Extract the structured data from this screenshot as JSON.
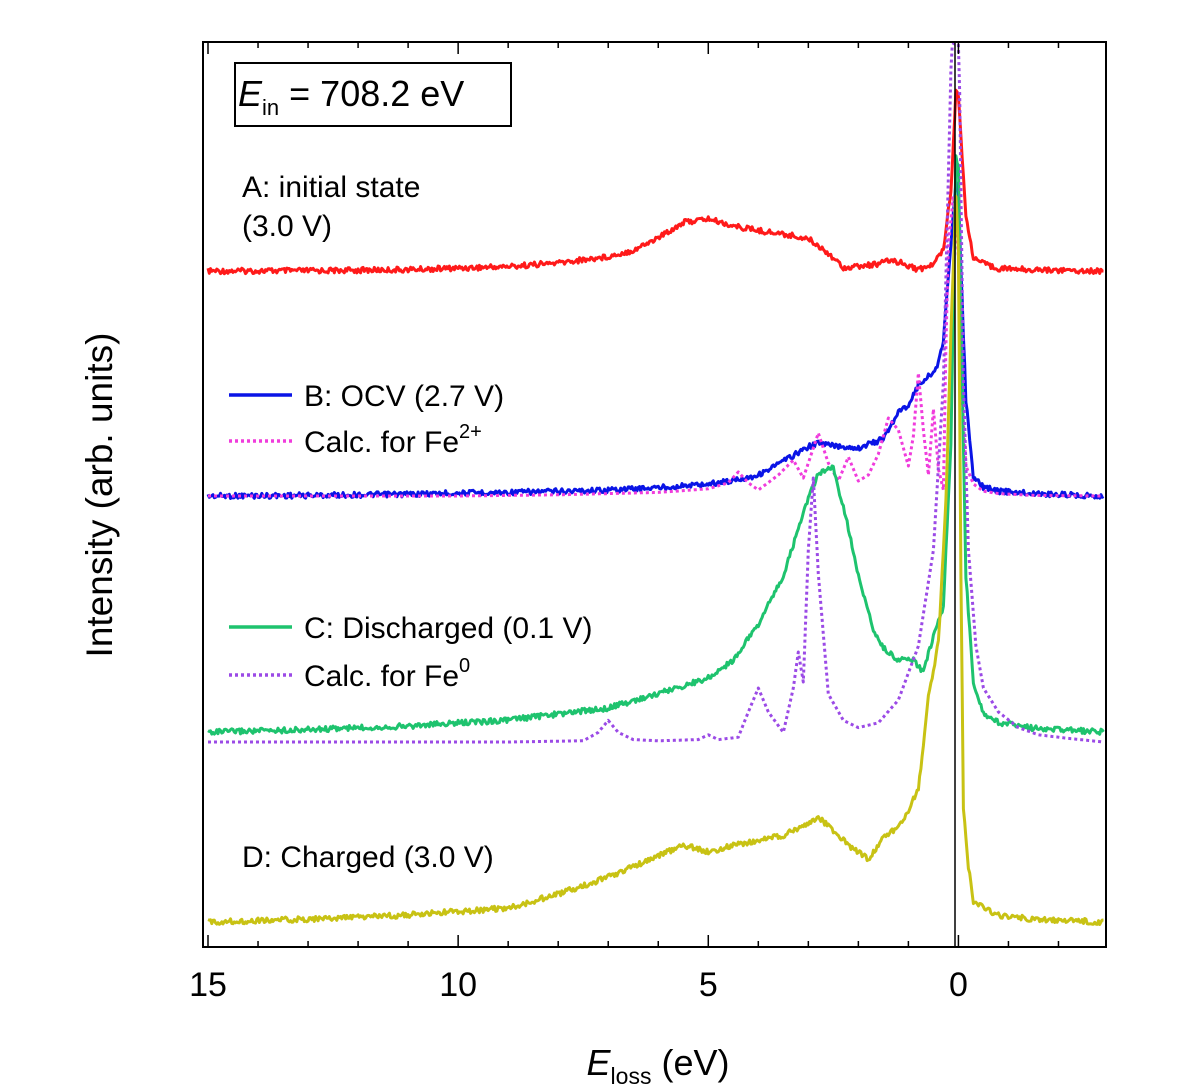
{
  "chart_data": {
    "type": "line",
    "xlabel": "E",
    "xlabel_sub": "loss",
    "xlabel_unit": " (eV)",
    "ylabel": "Intensity (arb. units)",
    "xlim": [
      15.1,
      -2.95
    ],
    "x_reversed": true,
    "xticks": [
      "15",
      "10",
      "5",
      "0"
    ],
    "grid": false,
    "energy_box": {
      "prefix": "E",
      "sub": "in",
      "rest": " = 708.2 eV"
    },
    "labels": {
      "a": {
        "line1": "A: initial state",
        "line2": "(3.0 V)"
      },
      "d": {
        "text": "D: Charged (3.0 V)"
      }
    },
    "legend": [
      {
        "text": "B: OCV (2.7 V)",
        "sup": "",
        "color": "#0a14e6",
        "dash": "solid"
      },
      {
        "text": "Calc. for Fe",
        "sup": "2+",
        "color": "#f03cdc",
        "dash": "dotted"
      },
      {
        "text": "C: Discharged (0.1 V)",
        "sup": "",
        "color": "#1ec36e",
        "dash": "solid"
      },
      {
        "text": "Calc. for Fe",
        "sup": "0",
        "color": "#9b4ae6",
        "dash": "dotted"
      }
    ],
    "series": [
      {
        "name": "A: initial state (3.0 V)",
        "color": "#ff1a1a",
        "dash": "solid",
        "x": [
          15,
          13,
          11,
          9,
          8,
          7,
          6.5,
          6,
          5.5,
          5,
          4.5,
          4,
          3.5,
          3,
          2.6,
          2.3,
          2,
          1.7,
          1.3,
          1.0,
          0.8,
          0.5,
          0.3,
          0.15,
          0.05,
          0,
          -0.05,
          -0.15,
          -0.3,
          -0.5,
          -0.8,
          -1.5,
          -2.9
        ],
        "y": [
          0,
          0.3,
          1.5,
          5,
          9,
          16,
          23,
          37,
          54,
          58,
          50,
          45,
          41,
          36,
          20,
          4,
          5,
          7,
          12,
          6,
          1.5,
          7,
          25,
          90,
          200,
          195,
          150,
          60,
          15,
          8,
          3,
          1.5,
          0
        ]
      },
      {
        "name": "B: OCV (2.7 V)",
        "color": "#0a14e6",
        "dash": "solid",
        "x": [
          15,
          14,
          13,
          12,
          11,
          10,
          9,
          8,
          7,
          6,
          5,
          4.5,
          4,
          3.5,
          3,
          2.8,
          2.5,
          2,
          1.5,
          1.2,
          1.0,
          0.8,
          0.6,
          0.45,
          0.3,
          0.15,
          0.05,
          0,
          -0.05,
          -0.15,
          -0.3,
          -0.5,
          -0.8,
          -1.5,
          -2.9
        ],
        "y": [
          0,
          0.5,
          1,
          2,
          3,
          5,
          6,
          8,
          10,
          14,
          20,
          26,
          35,
          58,
          82,
          88,
          84,
          80,
          95,
          140,
          152,
          185,
          200,
          210,
          260,
          420,
          520,
          510,
          380,
          160,
          30,
          15,
          8,
          4,
          0
        ]
      },
      {
        "name": "Calc. for Fe2+",
        "color": "#f03cdc",
        "dash": "dotted",
        "x": [
          15,
          12,
          10,
          8,
          6,
          5,
          4.6,
          4.4,
          4.2,
          4.0,
          3.6,
          3.3,
          3.1,
          2.8,
          2.6,
          2.4,
          2.2,
          2.0,
          1.8,
          1.6,
          1.4,
          1.2,
          1.0,
          0.9,
          0.8,
          0.7,
          0.6,
          0.5,
          0.4,
          0.3,
          0.25,
          0.2,
          0.1,
          0.05,
          0,
          -0.05,
          -0.15,
          -0.3,
          -0.5,
          -0.8,
          -1.5,
          -2.9
        ],
        "y": [
          0,
          0,
          0,
          2,
          6,
          12,
          22,
          40,
          22,
          10,
          35,
          60,
          30,
          105,
          55,
          25,
          65,
          25,
          35,
          70,
          130,
          110,
          50,
          100,
          205,
          110,
          35,
          145,
          45,
          10,
          250,
          420,
          500,
          450,
          400,
          200,
          50,
          20,
          8,
          4,
          1,
          0
        ]
      },
      {
        "name": "C: Discharged (0.1 V)",
        "color": "#1ec36e",
        "dash": "solid",
        "x": [
          15,
          13,
          11,
          9,
          8,
          7,
          6,
          5,
          4.5,
          4,
          3.5,
          3,
          2.8,
          2.5,
          2.2,
          2,
          1.7,
          1.5,
          1.2,
          0.9,
          0.7,
          0.5,
          0.3,
          0.15,
          0.05,
          0,
          -0.05,
          -0.15,
          -0.3,
          -0.5,
          -0.8,
          -1.5,
          -2.9
        ],
        "y": [
          0,
          2,
          5,
          10,
          15,
          20,
          32,
          45,
          60,
          90,
          130,
          195,
          215,
          220,
          170,
          130,
          85,
          70,
          60,
          60,
          50,
          80,
          105,
          240,
          480,
          470,
          350,
          130,
          40,
          15,
          8,
          3,
          0
        ]
      },
      {
        "name": "Calc. for Fe0",
        "color": "#9b4ae6",
        "dash": "dotted",
        "x": [
          15,
          12,
          9,
          7.5,
          7.2,
          7.0,
          6.8,
          6.5,
          6,
          5.2,
          5.0,
          4.8,
          4.4,
          4.2,
          4.0,
          3.8,
          3.5,
          3.3,
          3.2,
          3.1,
          3.0,
          2.9,
          2.8,
          2.6,
          2.3,
          2.0,
          1.6,
          1.2,
          0.8,
          0.5,
          0.3,
          0.15,
          0.05,
          0,
          -0.05,
          -0.1,
          -0.2,
          -0.35,
          -0.5,
          -0.8,
          -1.2,
          -1.6,
          -2.2,
          -2.9
        ],
        "y": [
          0,
          0,
          0,
          1,
          8,
          18,
          8,
          2,
          1,
          2,
          6,
          2,
          4,
          25,
          45,
          25,
          8,
          45,
          75,
          50,
          160,
          220,
          140,
          40,
          18,
          12,
          16,
          35,
          80,
          160,
          300,
          560,
          640,
          620,
          460,
          300,
          160,
          80,
          45,
          25,
          12,
          6,
          3,
          0
        ]
      },
      {
        "name": "D: Charged (3.0 V)",
        "color": "#c8c214",
        "dash": "solid",
        "x": [
          15,
          13,
          11,
          9,
          8,
          7,
          6,
          5.5,
          5,
          4.5,
          4,
          3.5,
          3,
          2.8,
          2.5,
          2.2,
          1.8,
          1.5,
          1.2,
          1.0,
          0.8,
          0.6,
          0.4,
          0.25,
          0.15,
          0.05,
          0,
          -0.05,
          -0.1,
          -0.2,
          -0.3,
          -0.5,
          -0.8,
          -1.5,
          -2.9
        ],
        "y": [
          0,
          2,
          5,
          10,
          20,
          32,
          47,
          55,
          50,
          55,
          58,
          62,
          70,
          75,
          65,
          55,
          45,
          60,
          68,
          80,
          95,
          160,
          200,
          300,
          420,
          520,
          480,
          250,
          80,
          40,
          15,
          10,
          5,
          2,
          0
        ]
      }
    ]
  }
}
